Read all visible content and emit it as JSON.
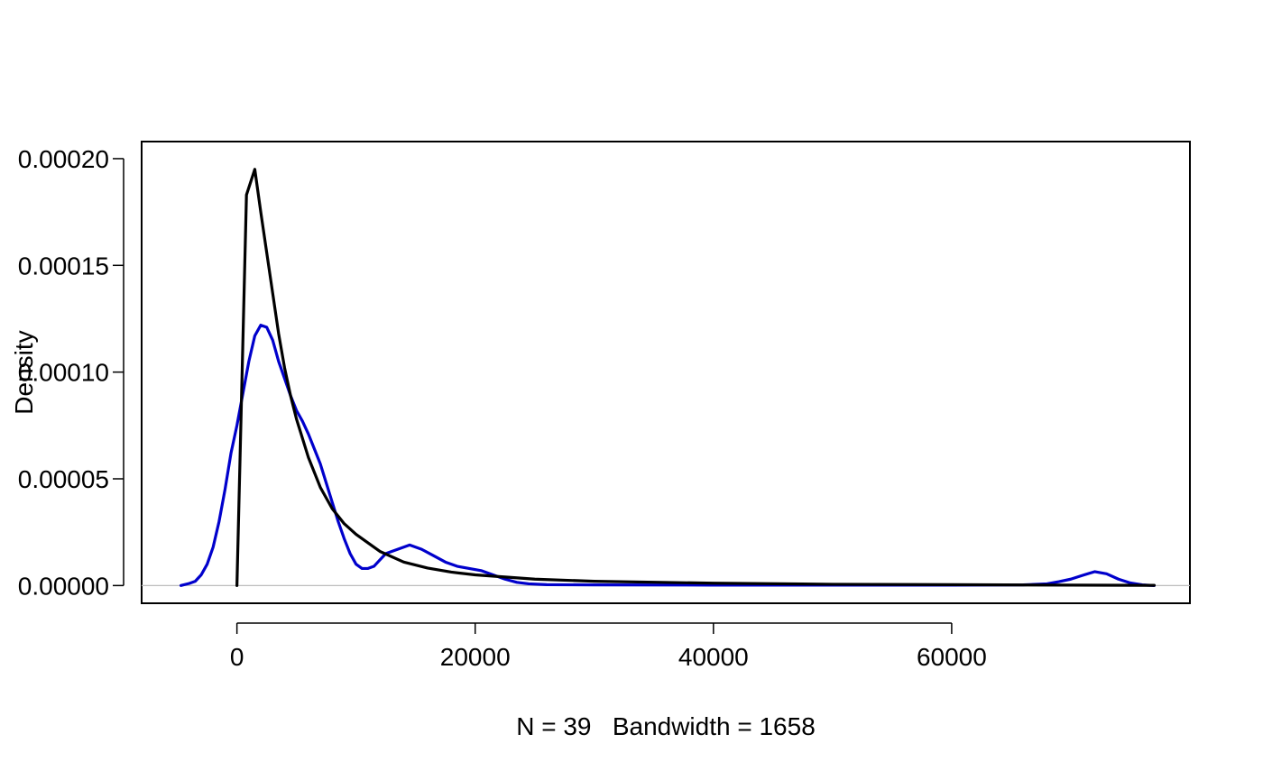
{
  "chart_data": {
    "type": "line",
    "title": "",
    "xlabel": "N = 39   Bandwidth = 1658",
    "ylabel": "Density",
    "xlim": [
      -8000,
      80000
    ],
    "ylim": [
      -8.3e-06,
      0.000208
    ],
    "x_ticks": [
      0,
      20000,
      40000,
      60000
    ],
    "x_tick_labels": [
      "0",
      "20000",
      "40000",
      "60000"
    ],
    "y_ticks": [
      0,
      5e-05,
      0.0001,
      0.00015,
      0.0002
    ],
    "y_tick_labels": [
      "0.00000",
      "0.00005",
      "0.00010",
      "0.00015",
      "0.00020"
    ],
    "grid": false,
    "legend": "none",
    "baseline": {
      "y": 0,
      "color": "#bebebe"
    },
    "series": [
      {
        "color": "#0000cc",
        "points": [
          [
            -4700,
            0
          ],
          [
            -4000,
            1e-06
          ],
          [
            -3500,
            2e-06
          ],
          [
            -3000,
            5e-06
          ],
          [
            -2500,
            1e-05
          ],
          [
            -2000,
            1.8e-05
          ],
          [
            -1500,
            3e-05
          ],
          [
            -1000,
            4.5e-05
          ],
          [
            -500,
            6.2e-05
          ],
          [
            0,
            7.5e-05
          ],
          [
            500,
            9e-05
          ],
          [
            1000,
            0.000105
          ],
          [
            1500,
            0.000117
          ],
          [
            2000,
            0.000122
          ],
          [
            2500,
            0.000121
          ],
          [
            3000,
            0.000115
          ],
          [
            3500,
            0.000105
          ],
          [
            4000,
            9.7e-05
          ],
          [
            4500,
            8.9e-05
          ],
          [
            5000,
            8.2e-05
          ],
          [
            5500,
            7.7e-05
          ],
          [
            6000,
            7.1e-05
          ],
          [
            6500,
            6.4e-05
          ],
          [
            7000,
            5.7e-05
          ],
          [
            7500,
            4.8e-05
          ],
          [
            8000,
            3.9e-05
          ],
          [
            8500,
            3e-05
          ],
          [
            9000,
            2.2e-05
          ],
          [
            9500,
            1.5e-05
          ],
          [
            10000,
            1e-05
          ],
          [
            10500,
            8e-06
          ],
          [
            11000,
            8e-06
          ],
          [
            11500,
            9e-06
          ],
          [
            12000,
            1.2e-05
          ],
          [
            12500,
            1.5e-05
          ],
          [
            13500,
            1.7e-05
          ],
          [
            14500,
            1.9e-05
          ],
          [
            15500,
            1.7e-05
          ],
          [
            16500,
            1.4e-05
          ],
          [
            17500,
            1.1e-05
          ],
          [
            18500,
            9e-06
          ],
          [
            19500,
            8e-06
          ],
          [
            20500,
            7e-06
          ],
          [
            21500,
            5e-06
          ],
          [
            22500,
            3e-06
          ],
          [
            23500,
            1.5e-06
          ],
          [
            24500,
            8e-07
          ],
          [
            26000,
            4e-07
          ],
          [
            30000,
            3e-07
          ],
          [
            40000,
            2e-07
          ],
          [
            50000,
            2e-07
          ],
          [
            60000,
            2e-07
          ],
          [
            66000,
            3e-07
          ],
          [
            68000,
            8e-07
          ],
          [
            69000,
            1.8e-06
          ],
          [
            70000,
            3e-06
          ],
          [
            71000,
            4.8e-06
          ],
          [
            72000,
            6.5e-06
          ],
          [
            73000,
            5.5e-06
          ],
          [
            74000,
            3e-06
          ],
          [
            75000,
            1.2e-06
          ],
          [
            76000,
            3e-07
          ],
          [
            77000,
            0
          ]
        ]
      },
      {
        "color": "#000000",
        "points": [
          [
            0,
            0
          ],
          [
            800,
            0.000183
          ],
          [
            1500,
            0.000195
          ],
          [
            2000,
            0.000175
          ],
          [
            2500,
            0.000156
          ],
          [
            3000,
            0.000137
          ],
          [
            3500,
            0.000118
          ],
          [
            4000,
            0.000102
          ],
          [
            4500,
            8.9e-05
          ],
          [
            5000,
            7.8e-05
          ],
          [
            6000,
            6e-05
          ],
          [
            7000,
            4.6e-05
          ],
          [
            8000,
            3.6e-05
          ],
          [
            9000,
            2.9e-05
          ],
          [
            10000,
            2.4e-05
          ],
          [
            12000,
            1.6e-05
          ],
          [
            14000,
            1.1e-05
          ],
          [
            16000,
            8.2e-06
          ],
          [
            18000,
            6.3e-06
          ],
          [
            20000,
            5e-06
          ],
          [
            25000,
            3e-06
          ],
          [
            30000,
            2e-06
          ],
          [
            40000,
            1.1e-06
          ],
          [
            50000,
            6e-07
          ],
          [
            60000,
            4e-07
          ],
          [
            70000,
            2e-07
          ],
          [
            77000,
            1e-07
          ]
        ]
      }
    ]
  }
}
